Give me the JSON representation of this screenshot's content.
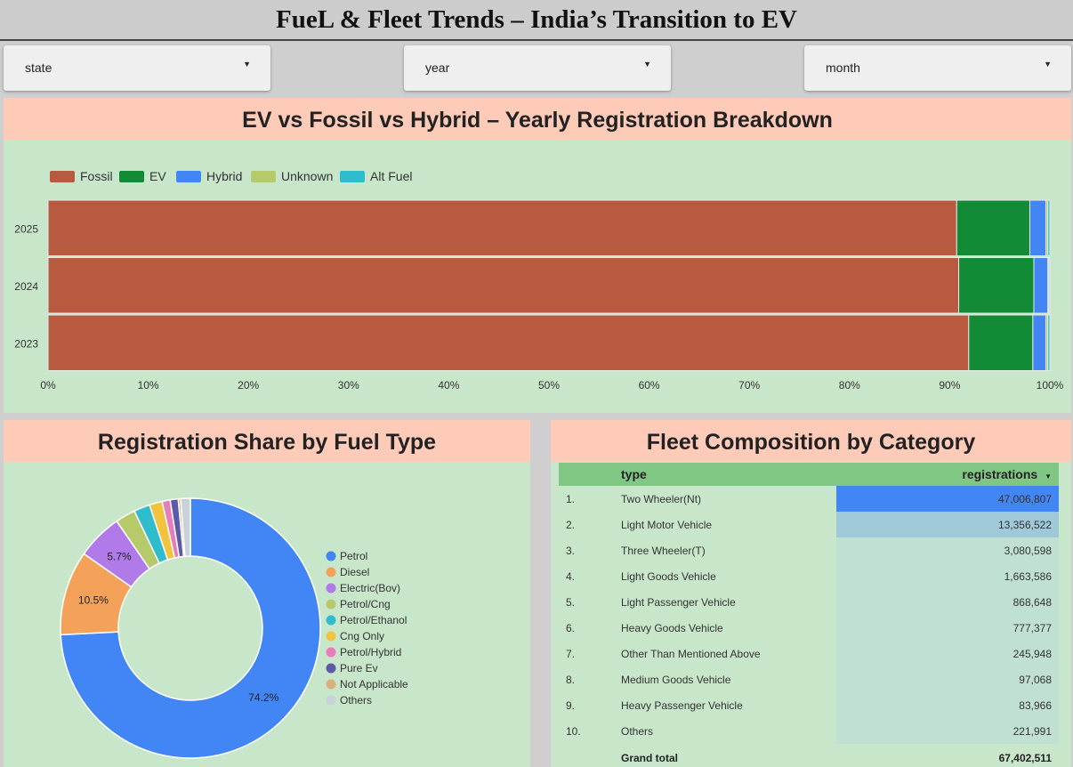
{
  "title": "FueL & Fleet Trends – India’s Transition to EV",
  "filters": [
    {
      "label": "state",
      "caret": "▼"
    },
    {
      "label": "year",
      "caret": "▼"
    },
    {
      "label": "month",
      "caret": "▼"
    }
  ],
  "bar_panel": {
    "title": "EV vs Fossil vs Hybrid – Yearly Registration Breakdown"
  },
  "pie_panel": {
    "title": "Registration Share by Fuel Type"
  },
  "table_panel": {
    "title": "Fleet Composition by Category",
    "col_type": "type",
    "col_value": "registrations",
    "sort_caret": "▼",
    "rows": [
      {
        "rank": "1.",
        "type": "Two Wheeler(Nt)",
        "value": "47,006,807",
        "share": 1.0
      },
      {
        "rank": "2.",
        "type": "Light Motor Vehicle",
        "value": "13,356,522",
        "share": 0.284
      },
      {
        "rank": "3.",
        "type": "Three Wheeler(T)",
        "value": "3,080,598",
        "share": 0.066
      },
      {
        "rank": "4.",
        "type": "Light Goods Vehicle",
        "value": "1,663,586",
        "share": 0.035
      },
      {
        "rank": "5.",
        "type": "Light Passenger Vehicle",
        "value": "868,648",
        "share": 0.018
      },
      {
        "rank": "6.",
        "type": "Heavy Goods Vehicle",
        "value": "777,377",
        "share": 0.017
      },
      {
        "rank": "7.",
        "type": "Other Than Mentioned Above",
        "value": "245,948",
        "share": 0.005
      },
      {
        "rank": "8.",
        "type": "Medium Goods Vehicle",
        "value": "97,068",
        "share": 0.002
      },
      {
        "rank": "9.",
        "type": "Heavy Passenger Vehicle",
        "value": "83,966",
        "share": 0.002
      },
      {
        "rank": "10.",
        "type": "Others",
        "value": "221,991",
        "share": 0.005
      }
    ],
    "total_label": "Grand total",
    "total_value": "67,402,511"
  },
  "colors": {
    "fossil": "#b85a3f",
    "ev": "#138a36",
    "hybrid": "#4285f4",
    "unknown": "#b6c96b",
    "alt_fuel": "#2fbccc",
    "table_bar_max": "#4285f4",
    "table_bar_mid": "#9fc9d8",
    "table_bar_min": "#bfe0d3"
  },
  "chart_data": [
    {
      "type": "bar",
      "orientation": "horizontal",
      "stacked": "percent",
      "categories": [
        "2025",
        "2024",
        "2023"
      ],
      "series": [
        {
          "name": "Fossil",
          "values": [
            90.7,
            90.9,
            91.9
          ]
        },
        {
          "name": "EV",
          "values": [
            7.3,
            7.5,
            6.4
          ]
        },
        {
          "name": "Hybrid",
          "values": [
            1.6,
            1.4,
            1.3
          ]
        },
        {
          "name": "Unknown",
          "values": [
            0.2,
            0.1,
            0.2
          ]
        },
        {
          "name": "Alt Fuel",
          "values": [
            0.2,
            0.1,
            0.2
          ]
        }
      ],
      "x_ticks": [
        "0%",
        "10%",
        "20%",
        "30%",
        "40%",
        "50%",
        "60%",
        "70%",
        "80%",
        "90%",
        "100%"
      ],
      "xlim": [
        0,
        100
      ],
      "legend": "top-left",
      "grid": false
    },
    {
      "type": "pie",
      "donut": true,
      "labels": [
        "Petrol",
        "Diesel",
        "Electric(Bov)",
        "Petrol/Cng",
        "Petrol/Ethanol",
        "Cng Only",
        "Petrol/Hybrid",
        "Pure Ev",
        "Not Applicable",
        "Others"
      ],
      "values": [
        74.2,
        10.5,
        5.7,
        2.5,
        2.0,
        1.6,
        1.0,
        1.0,
        0.3,
        1.2
      ],
      "shown_labels": [
        "74.2%",
        "10.5%",
        "5.7%",
        "",
        "",
        "",
        "",
        "",
        "",
        ""
      ],
      "colors": [
        "#4285f4",
        "#f4a25a",
        "#b07ae8",
        "#b6c96b",
        "#2fbccc",
        "#f2c43d",
        "#e87dbc",
        "#5a5aa8",
        "#d8b07e",
        "#c9d1dc"
      ],
      "legend": "right"
    }
  ]
}
